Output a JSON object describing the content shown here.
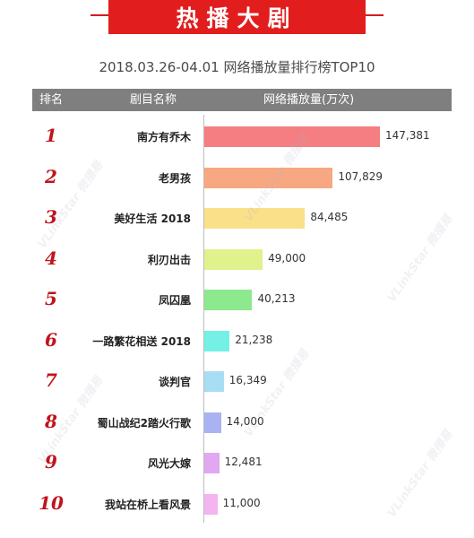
{
  "banner": {
    "title": "热播大剧"
  },
  "subtitle": "2018.03.26-04.01 网络播放量排行榜TOP10",
  "header": {
    "rank": "排名",
    "name": "剧目名称",
    "value": "网络播放量(万次)"
  },
  "watermark": "VLinkStar 微播易",
  "chart_data": {
    "type": "bar",
    "orientation": "horizontal",
    "title": "2018.03.26-04.01 网络播放量排行榜TOP10",
    "xlabel": "网络播放量(万次)",
    "categories": [
      "南方有乔木",
      "老男孩",
      "美好生活 2018",
      "利刃出击",
      "凤囚凰",
      "一路繁花相送 2018",
      "谈判官",
      "蜀山战纪2踏火行歌",
      "风光大嫁",
      "我站在桥上看风景"
    ],
    "ranks": [
      "1",
      "2",
      "3",
      "4",
      "5",
      "6",
      "7",
      "8",
      "9",
      "10"
    ],
    "values": [
      147381,
      107829,
      84485,
      49000,
      40213,
      21238,
      16349,
      14000,
      12481,
      11000
    ],
    "value_labels": [
      "147,381",
      "107,829",
      "84,485",
      "49,000",
      "40,213",
      "21,238",
      "16,349",
      "14,000",
      "12,481",
      "11,000"
    ],
    "colors": [
      "#f47e82",
      "#f7a882",
      "#fbe08a",
      "#dff28c",
      "#8de98d",
      "#74f0e4",
      "#a8def4",
      "#aab3f2",
      "#e1a7f1",
      "#f4b4f0"
    ],
    "xlim": [
      0,
      147381
    ]
  }
}
